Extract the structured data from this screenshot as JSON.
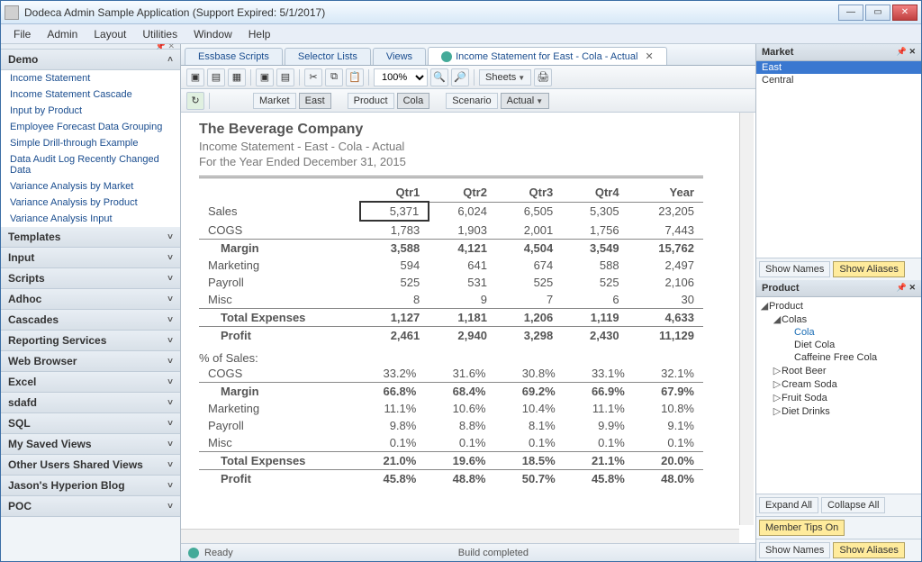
{
  "title": "Dodeca Admin Sample Application (Support Expired: 5/1/2017)",
  "menu": [
    "File",
    "Admin",
    "Layout",
    "Utilities",
    "Window",
    "Help"
  ],
  "sidebar": {
    "top_section": "Demo",
    "items": [
      "Income Statement",
      "Income Statement Cascade",
      "Input by Product",
      "Employee Forecast Data Grouping",
      "Simple Drill-through Example",
      "Data Audit Log Recently Changed Data",
      "Variance Analysis by Market",
      "Variance Analysis by Product",
      "Variance Analysis Input"
    ],
    "collapsed": [
      "Templates",
      "Input",
      "Scripts",
      "Adhoc",
      "Cascades",
      "Reporting Services",
      "Web Browser",
      "Excel",
      "sdafd",
      "SQL",
      "My Saved Views",
      "Other Users Shared Views",
      "Jason's Hyperion Blog",
      "POC"
    ]
  },
  "tabs": {
    "items": [
      "Essbase Scripts",
      "Selector Lists",
      "Views"
    ],
    "active": "Income Statement for East - Cola - Actual"
  },
  "toolbar": {
    "zoom": "100%",
    "sheets": "Sheets",
    "market": "Market",
    "market_val": "East",
    "product": "Product",
    "product_val": "Cola",
    "scenario": "Scenario",
    "scenario_val": "Actual"
  },
  "report": {
    "company": "The Beverage Company",
    "subtitle": "Income Statement - East - Cola - Actual",
    "period": "For the Year Ended December 31, 2015",
    "cols": [
      "Qtr1",
      "Qtr2",
      "Qtr3",
      "Qtr4",
      "Year"
    ],
    "rows": [
      {
        "label": "Sales",
        "vals": [
          "5,371",
          "6,024",
          "6,505",
          "5,305",
          "23,205"
        ],
        "sel": 0
      },
      {
        "label": "COGS",
        "vals": [
          "1,783",
          "1,903",
          "2,001",
          "1,756",
          "7,443"
        ]
      },
      {
        "label": "Margin",
        "vals": [
          "3,588",
          "4,121",
          "4,504",
          "3,549",
          "15,762"
        ],
        "bold": true,
        "indent": true
      },
      {
        "label": "Marketing",
        "vals": [
          "594",
          "641",
          "674",
          "588",
          "2,497"
        ]
      },
      {
        "label": "Payroll",
        "vals": [
          "525",
          "531",
          "525",
          "525",
          "2,106"
        ]
      },
      {
        "label": "Misc",
        "vals": [
          "8",
          "9",
          "7",
          "6",
          "30"
        ]
      },
      {
        "label": "Total Expenses",
        "vals": [
          "1,127",
          "1,181",
          "1,206",
          "1,119",
          "4,633"
        ],
        "bold": true,
        "indent": true
      },
      {
        "label": "Profit",
        "vals": [
          "2,461",
          "2,940",
          "3,298",
          "2,430",
          "11,129"
        ],
        "bold": true,
        "indent": true
      }
    ],
    "pct_label": "% of Sales:",
    "pct_rows": [
      {
        "label": "COGS",
        "vals": [
          "33.2%",
          "31.6%",
          "30.8%",
          "33.1%",
          "32.1%"
        ]
      },
      {
        "label": "Margin",
        "vals": [
          "66.8%",
          "68.4%",
          "69.2%",
          "66.9%",
          "67.9%"
        ],
        "bold": true,
        "indent": true
      },
      {
        "label": "Marketing",
        "vals": [
          "11.1%",
          "10.6%",
          "10.4%",
          "11.1%",
          "10.8%"
        ]
      },
      {
        "label": "Payroll",
        "vals": [
          "9.8%",
          "8.8%",
          "8.1%",
          "9.9%",
          "9.1%"
        ]
      },
      {
        "label": "Misc",
        "vals": [
          "0.1%",
          "0.1%",
          "0.1%",
          "0.1%",
          "0.1%"
        ]
      },
      {
        "label": "Total Expenses",
        "vals": [
          "21.0%",
          "19.6%",
          "18.5%",
          "21.1%",
          "20.0%"
        ],
        "bold": true,
        "indent": true
      },
      {
        "label": "Profit",
        "vals": [
          "45.8%",
          "48.8%",
          "50.7%",
          "45.8%",
          "48.0%"
        ],
        "bold": true,
        "indent": true
      }
    ]
  },
  "status": {
    "ready": "Ready",
    "build": "Build completed"
  },
  "market_panel": {
    "title": "Market",
    "items": [
      "East",
      "Central"
    ],
    "show_names": "Show Names",
    "show_aliases": "Show Aliases"
  },
  "product_panel": {
    "title": "Product",
    "expand_all": "Expand All",
    "collapse_all": "Collapse All",
    "tips": "Member Tips On",
    "tree": {
      "root": "Product",
      "colas": "Colas",
      "cola": "Cola",
      "diet": "Diet Cola",
      "caff": "Caffeine Free Cola",
      "rb": "Root Beer",
      "cs": "Cream Soda",
      "fs": "Fruit Soda",
      "dd": "Diet Drinks"
    }
  }
}
